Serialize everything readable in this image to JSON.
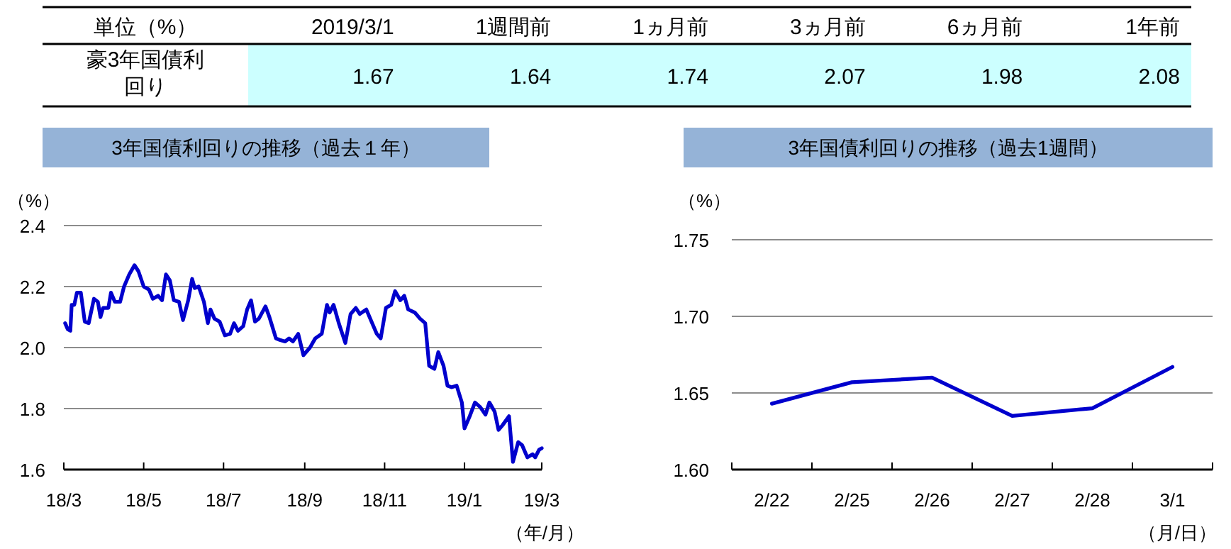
{
  "chart_data": [
    {
      "type": "other",
      "title": "単位（%）",
      "categories": [
        "2019/3/1",
        "1週間前",
        "1ヵ月前",
        "3ヵ月前",
        "6ヵ月前",
        "1年前"
      ],
      "data_labels": true,
      "series": [
        {
          "name": "豪3年国債利回り",
          "color": "#ccffff",
          "values": [
            1.67,
            1.64,
            1.74,
            2.07,
            1.98,
            2.08
          ]
        }
      ]
    },
    {
      "type": "line",
      "title": "3年国債利回りの推移（過去１年）",
      "ylabel": "（%）",
      "xlabel": "（年/月）",
      "grid": "y",
      "xlim": [
        "2018-03-01",
        "2019-03-01"
      ],
      "xticks": [
        {
          "value": "2018-03-01",
          "label": "18/3"
        },
        {
          "value": "2018-05-01",
          "label": "18/5"
        },
        {
          "value": "2018-07-01",
          "label": "18/7"
        },
        {
          "value": "2018-09-01",
          "label": "18/9"
        },
        {
          "value": "2018-11-01",
          "label": "18/11"
        },
        {
          "value": "2019-01-01",
          "label": "19/1"
        },
        {
          "value": "2019-03-01",
          "label": "19/3"
        }
      ],
      "ylim": [
        1.6,
        2.4
      ],
      "yticks": [
        1.6,
        1.8,
        {
          "value": 2.0,
          "label": "2.0"
        },
        2.2,
        2.4
      ],
      "x": [
        "2018-03-02",
        "2018-03-04",
        "2018-03-06",
        "2018-03-07",
        "2018-03-09",
        "2018-03-11",
        "2018-03-14",
        "2018-03-17",
        "2018-03-20",
        "2018-03-24",
        "2018-03-27",
        "2018-03-29",
        "2018-03-31",
        "2018-04-04",
        "2018-04-06",
        "2018-04-09",
        "2018-04-13",
        "2018-04-16",
        "2018-04-20",
        "2018-04-24",
        "2018-04-27",
        "2018-05-01",
        "2018-05-05",
        "2018-05-08",
        "2018-05-12",
        "2018-05-15",
        "2018-05-18",
        "2018-05-21",
        "2018-05-24",
        "2018-05-28",
        "2018-05-31",
        "2018-06-04",
        "2018-06-07",
        "2018-06-09",
        "2018-06-12",
        "2018-06-16",
        "2018-06-19",
        "2018-06-21",
        "2018-06-24",
        "2018-06-28",
        "2018-07-02",
        "2018-07-06",
        "2018-07-09",
        "2018-07-12",
        "2018-07-16",
        "2018-07-19",
        "2018-07-22",
        "2018-07-25",
        "2018-07-28",
        "2018-08-02",
        "2018-08-05",
        "2018-08-10",
        "2018-08-13",
        "2018-08-17",
        "2018-08-20",
        "2018-08-23",
        "2018-08-27",
        "2018-08-31",
        "2018-09-05",
        "2018-09-09",
        "2018-09-14",
        "2018-09-18",
        "2018-09-20",
        "2018-09-23",
        "2018-09-27",
        "2018-10-02",
        "2018-10-06",
        "2018-10-10",
        "2018-10-13",
        "2018-10-18",
        "2018-10-22",
        "2018-10-26",
        "2018-10-29",
        "2018-11-02",
        "2018-11-06",
        "2018-11-09",
        "2018-11-13",
        "2018-11-16",
        "2018-11-19",
        "2018-11-24",
        "2018-11-28",
        "2018-12-02",
        "2018-12-05",
        "2018-12-09",
        "2018-12-12",
        "2018-12-16",
        "2018-12-19",
        "2018-12-22",
        "2018-12-26",
        "2018-12-30",
        "2019-01-01",
        "2019-01-05",
        "2019-01-09",
        "2019-01-13",
        "2019-01-17",
        "2019-01-20",
        "2019-01-24",
        "2019-01-27",
        "2019-01-30",
        "2019-02-04",
        "2019-02-07",
        "2019-02-11",
        "2019-02-14",
        "2019-02-18",
        "2019-02-22",
        "2019-02-24",
        "2019-02-27",
        "2019-03-01"
      ],
      "series": [
        {
          "color": "#0000cd",
          "values": [
            2.08,
            2.06,
            2.055,
            2.14,
            2.14,
            2.18,
            2.18,
            2.085,
            2.08,
            2.16,
            2.15,
            2.1,
            2.13,
            2.13,
            2.18,
            2.15,
            2.15,
            2.2,
            2.24,
            2.27,
            2.25,
            2.2,
            2.19,
            2.16,
            2.17,
            2.155,
            2.24,
            2.22,
            2.155,
            2.15,
            2.09,
            2.155,
            2.225,
            2.195,
            2.2,
            2.15,
            2.08,
            2.125,
            2.095,
            2.085,
            2.04,
            2.045,
            2.08,
            2.055,
            2.07,
            2.125,
            2.155,
            2.085,
            2.095,
            2.135,
            2.1,
            2.03,
            2.025,
            2.02,
            2.03,
            2.02,
            2.045,
            1.975,
            2.0,
            2.03,
            2.045,
            2.14,
            2.115,
            2.14,
            2.08,
            2.015,
            2.11,
            2.13,
            2.11,
            2.125,
            2.085,
            2.045,
            2.03,
            2.13,
            2.14,
            2.185,
            2.155,
            2.17,
            2.125,
            2.115,
            2.095,
            2.08,
            1.94,
            1.93,
            1.985,
            1.94,
            1.875,
            1.87,
            1.875,
            1.82,
            1.735,
            1.775,
            1.82,
            1.805,
            1.78,
            1.82,
            1.79,
            1.73,
            1.745,
            1.775,
            1.625,
            1.69,
            1.68,
            1.64,
            1.65,
            1.64,
            1.665,
            1.67
          ]
        }
      ]
    },
    {
      "type": "line",
      "title": "3年国債利回りの推移（過去1週間）",
      "ylabel": "（%）",
      "xlabel": "（月/日）",
      "grid": "y",
      "categories": [
        "2/22",
        "2/25",
        "2/26",
        "2/27",
        "2/28",
        "3/1"
      ],
      "ylim": [
        1.6,
        1.75
      ],
      "yticks": [
        {
          "value": 1.6,
          "label": "1.60"
        },
        {
          "value": 1.65,
          "label": "1.65"
        },
        {
          "value": 1.7,
          "label": "1.70"
        },
        {
          "value": 1.75,
          "label": "1.75"
        }
      ],
      "series": [
        {
          "color": "#0000cd",
          "values": [
            1.643,
            1.657,
            1.66,
            1.635,
            1.64,
            1.667
          ]
        }
      ]
    }
  ]
}
